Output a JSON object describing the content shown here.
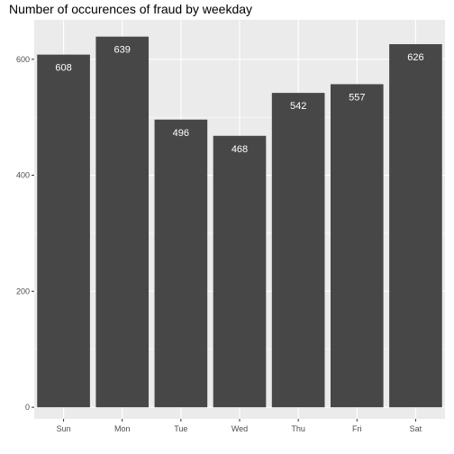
{
  "chart_data": {
    "type": "bar",
    "title": "Number of occurences of fraud by weekday",
    "xlabel": "",
    "ylabel": "",
    "categories": [
      "Sun",
      "Mon",
      "Tue",
      "Wed",
      "Thu",
      "Fri",
      "Sat"
    ],
    "values": [
      608,
      639,
      496,
      468,
      542,
      557,
      626
    ],
    "data_labels": [
      "608",
      "639",
      "496",
      "468",
      "542",
      "557",
      "626"
    ],
    "yticks": [
      0,
      200,
      400,
      600
    ],
    "ylim": [
      -20,
      668
    ],
    "grid": true,
    "legend": "none",
    "colors": {
      "panel_background": "#ebebeb",
      "grid_major": "#ffffff",
      "bar_fill": "#474747",
      "data_label": "#ffffff",
      "tick_label": "#4d4d4d"
    }
  }
}
